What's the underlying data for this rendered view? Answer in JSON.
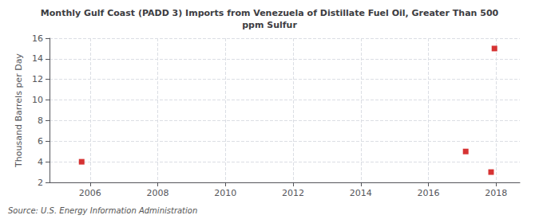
{
  "chart_data": {
    "type": "scatter",
    "title": "Monthly Gulf Coast (PADD 3) Imports from Venezuela of Distillate Fuel Oil, Greater Than 500\nppm Sulfur",
    "ylabel": "Thousand Barrels per Day",
    "source": "Source: U.S. Energy Information Administration",
    "x": [
      2005.75,
      2017.1,
      2017.85,
      2017.95
    ],
    "values": [
      4.0,
      5.0,
      3.0,
      15.0
    ],
    "color": "#cc0000",
    "marker": "square",
    "xlim": [
      2004.8,
      2018.7
    ],
    "xticks": [
      2006,
      2008,
      2010,
      2012,
      2014,
      2016,
      2018
    ],
    "ylim": [
      2,
      16
    ],
    "yticks": [
      2,
      4,
      6,
      8,
      10,
      12,
      14,
      16
    ],
    "grid": true
  }
}
